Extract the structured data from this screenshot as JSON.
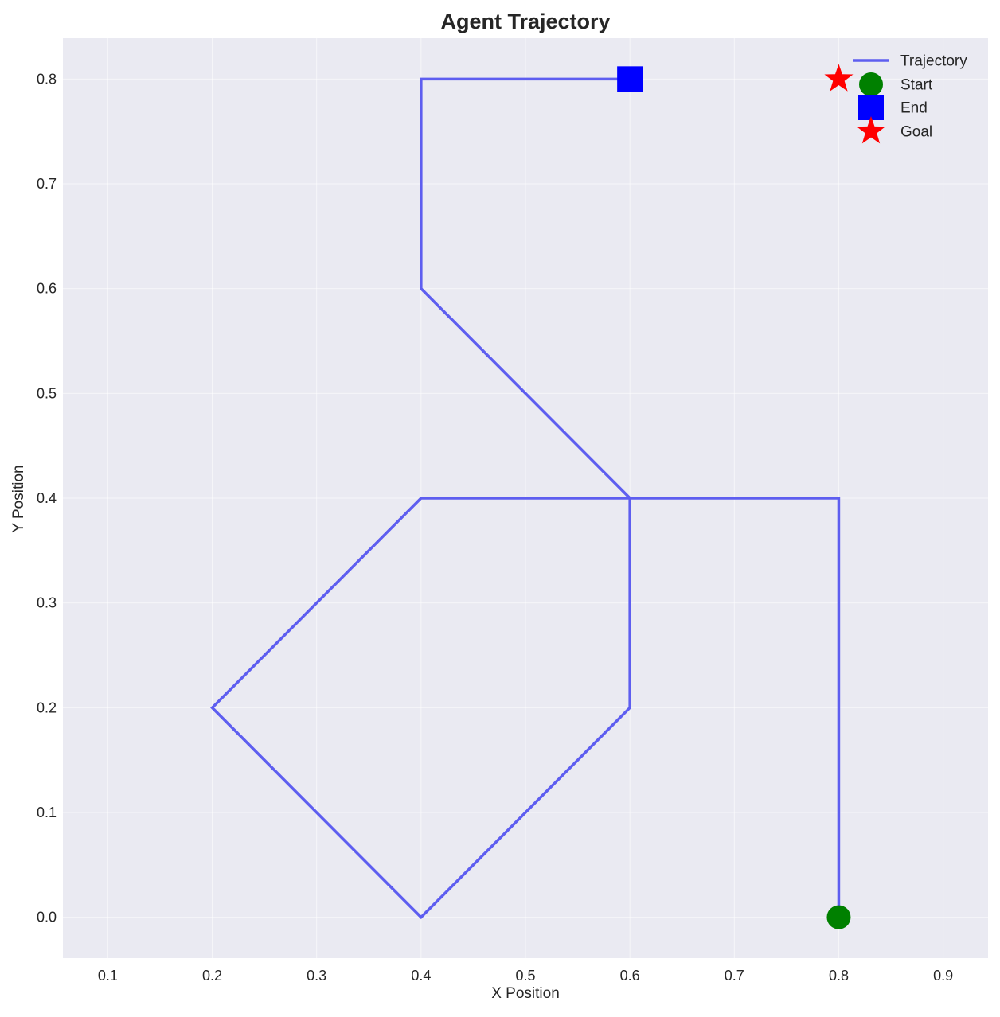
{
  "chart_data": {
    "type": "line",
    "title": "Agent Trajectory",
    "xlabel": "X Position",
    "ylabel": "Y Position",
    "xlim": [
      0.057,
      0.943
    ],
    "ylim": [
      -0.039,
      0.839
    ],
    "xticks": [
      0.1,
      0.2,
      0.3,
      0.4,
      0.5,
      0.6,
      0.7,
      0.8,
      0.9
    ],
    "yticks": [
      0.0,
      0.1,
      0.2,
      0.3,
      0.4,
      0.5,
      0.6,
      0.7,
      0.8
    ],
    "xtick_labels": [
      "0.1",
      "0.2",
      "0.3",
      "0.4",
      "0.5",
      "0.6",
      "0.7",
      "0.8",
      "0.9"
    ],
    "ytick_labels": [
      "0.0",
      "0.1",
      "0.2",
      "0.3",
      "0.4",
      "0.5",
      "0.6",
      "0.7",
      "0.8"
    ],
    "grid": true,
    "legend_position": "top-right",
    "colors": {
      "plot_background": "#eaeaf2",
      "grid": "#ffffff",
      "trajectory": "#5e5ef0",
      "start": "#008000",
      "end": "#0000ff",
      "goal": "#ff0000"
    },
    "series": [
      {
        "name": "Trajectory",
        "kind": "line",
        "x": [
          0.8,
          0.8,
          0.8,
          0.8,
          0.6,
          0.4,
          0.2,
          0.4,
          0.6,
          0.6,
          0.4,
          0.4,
          0.6
        ],
        "y": [
          0.0,
          0.2,
          0.4,
          0.4,
          0.4,
          0.4,
          0.2,
          0.0,
          0.2,
          0.4,
          0.6,
          0.8,
          0.8
        ]
      },
      {
        "name": "Start",
        "kind": "marker",
        "marker": "circle",
        "x": [
          0.8
        ],
        "y": [
          0.0
        ]
      },
      {
        "name": "End",
        "kind": "marker",
        "marker": "square",
        "x": [
          0.6
        ],
        "y": [
          0.8
        ]
      },
      {
        "name": "Goal",
        "kind": "marker",
        "marker": "star",
        "x": [
          0.8
        ],
        "y": [
          0.8
        ]
      }
    ]
  }
}
